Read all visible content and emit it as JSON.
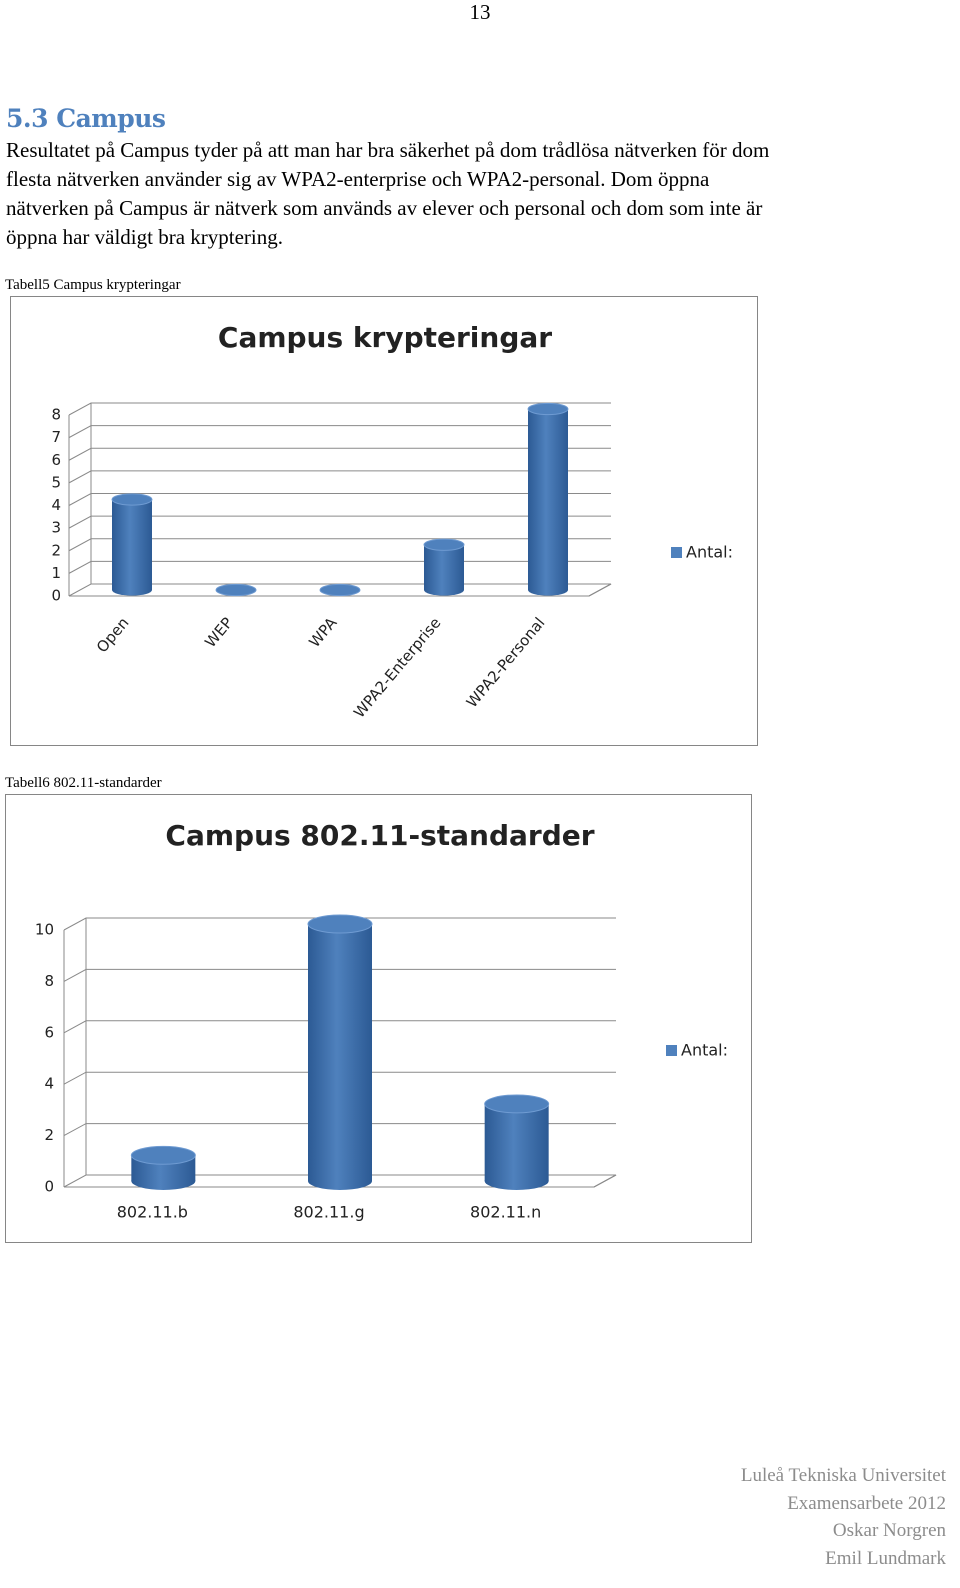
{
  "page_number": "13",
  "heading": "5.3 Campus",
  "paragraph_lines": [
    "Resultatet på Campus tyder på att man har bra säkerhet på dom trådlösa nätverken för dom",
    "flesta nätverken använder sig av WPA2-enterprise och WPA2-personal. Dom öppna",
    "nätverken på Campus är nätverk som används av elever och personal och dom som inte är",
    "öppna har väldigt bra kryptering."
  ],
  "chart_data": [
    {
      "type": "bar",
      "caption": "Tabell5 Campus krypteringar",
      "title": "Campus krypteringar",
      "categories": [
        "Open",
        "WEP",
        "WPA",
        "WPA2-Enterprise",
        "WPA2-Personal"
      ],
      "series": [
        {
          "name": "Antal:",
          "color": "#4f81bd",
          "values": [
            4,
            0,
            0,
            2,
            8
          ]
        }
      ],
      "ylim": [
        0,
        8
      ],
      "yticks": [
        0,
        1,
        2,
        3,
        4,
        5,
        6,
        7,
        8
      ],
      "grid": true,
      "legend": "right",
      "rotate_labels": true
    },
    {
      "type": "bar",
      "caption": "Tabell6 802.11-standarder",
      "title": "Campus 802.11-standarder",
      "categories": [
        "802.11.b",
        "802.11.g",
        "802.11.n"
      ],
      "series": [
        {
          "name": "Antal:",
          "color": "#4f81bd",
          "values": [
            1,
            10,
            3
          ]
        }
      ],
      "ylim": [
        0,
        10
      ],
      "yticks": [
        0,
        2,
        4,
        6,
        8,
        10
      ],
      "grid": true,
      "legend": "right",
      "rotate_labels": false
    }
  ],
  "footer": [
    "Luleå Tekniska Universitet",
    "Examensarbete 2012",
    "Oskar Norgren",
    "Emil Lundmark"
  ]
}
